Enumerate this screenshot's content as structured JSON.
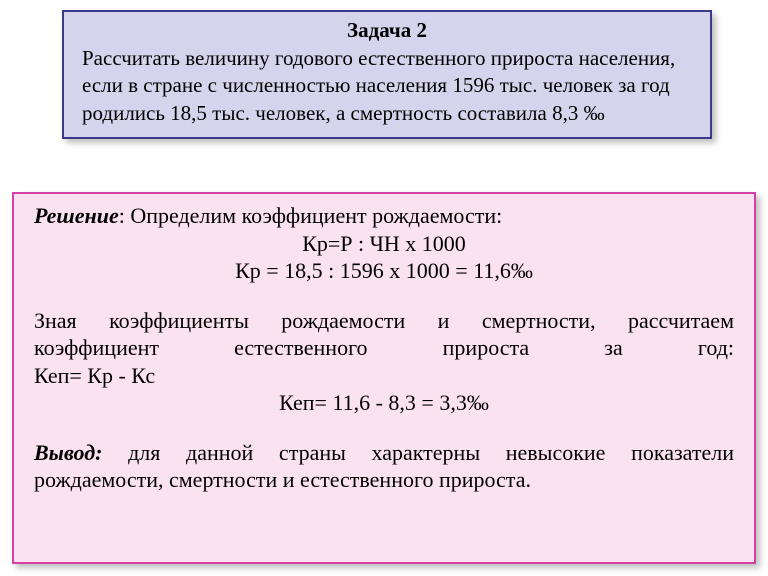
{
  "task": {
    "title": "Задача 2",
    "body": "Рассчитать  величину  годового  естественного  прироста  населения,  если  в  стране  с  численностью   населения  1596  тыс.  человек  за  год  родились  18,5  тыс. человек,  а смертность  составила  8,3 ‰",
    "title_fontsize": 21,
    "body_fontsize": 21,
    "bg_color": "#d6d3ec",
    "border_color": "#3a3a8a"
  },
  "solution": {
    "bg_color": "#fbe2f1",
    "border_color": "#d63fa6",
    "fontsize": 22,
    "label_solution": "Решение",
    "sol_intro_rest": ":   Определим  коэффициент  рождаемости:",
    "formula1": "Кр=Р : ЧН х 1000",
    "formula2": "Кр = 18,5 : 1596 х 1000 = 11,6‰",
    "para2_line1": "Зная коэффициенты рождаемости и смертности, рассчитаем",
    "para2_line2": "коэффициент естественного прироста за год:",
    "para2_line3": "Кеп=  Кр - Кс",
    "formula3": "Кеп=  11,6 - 8,3 = 3,3‰",
    "label_conclusion": "Вывод:",
    "concl_line1_rest": " для данной страны характерны невысокие показатели",
    "concl_line2": "рождаемости, смертности  и  естественного  прироста."
  },
  "colors": {
    "page_bg": "#ffffff",
    "text": "#000000",
    "shadow": "rgba(0,0,0,0.25)"
  }
}
